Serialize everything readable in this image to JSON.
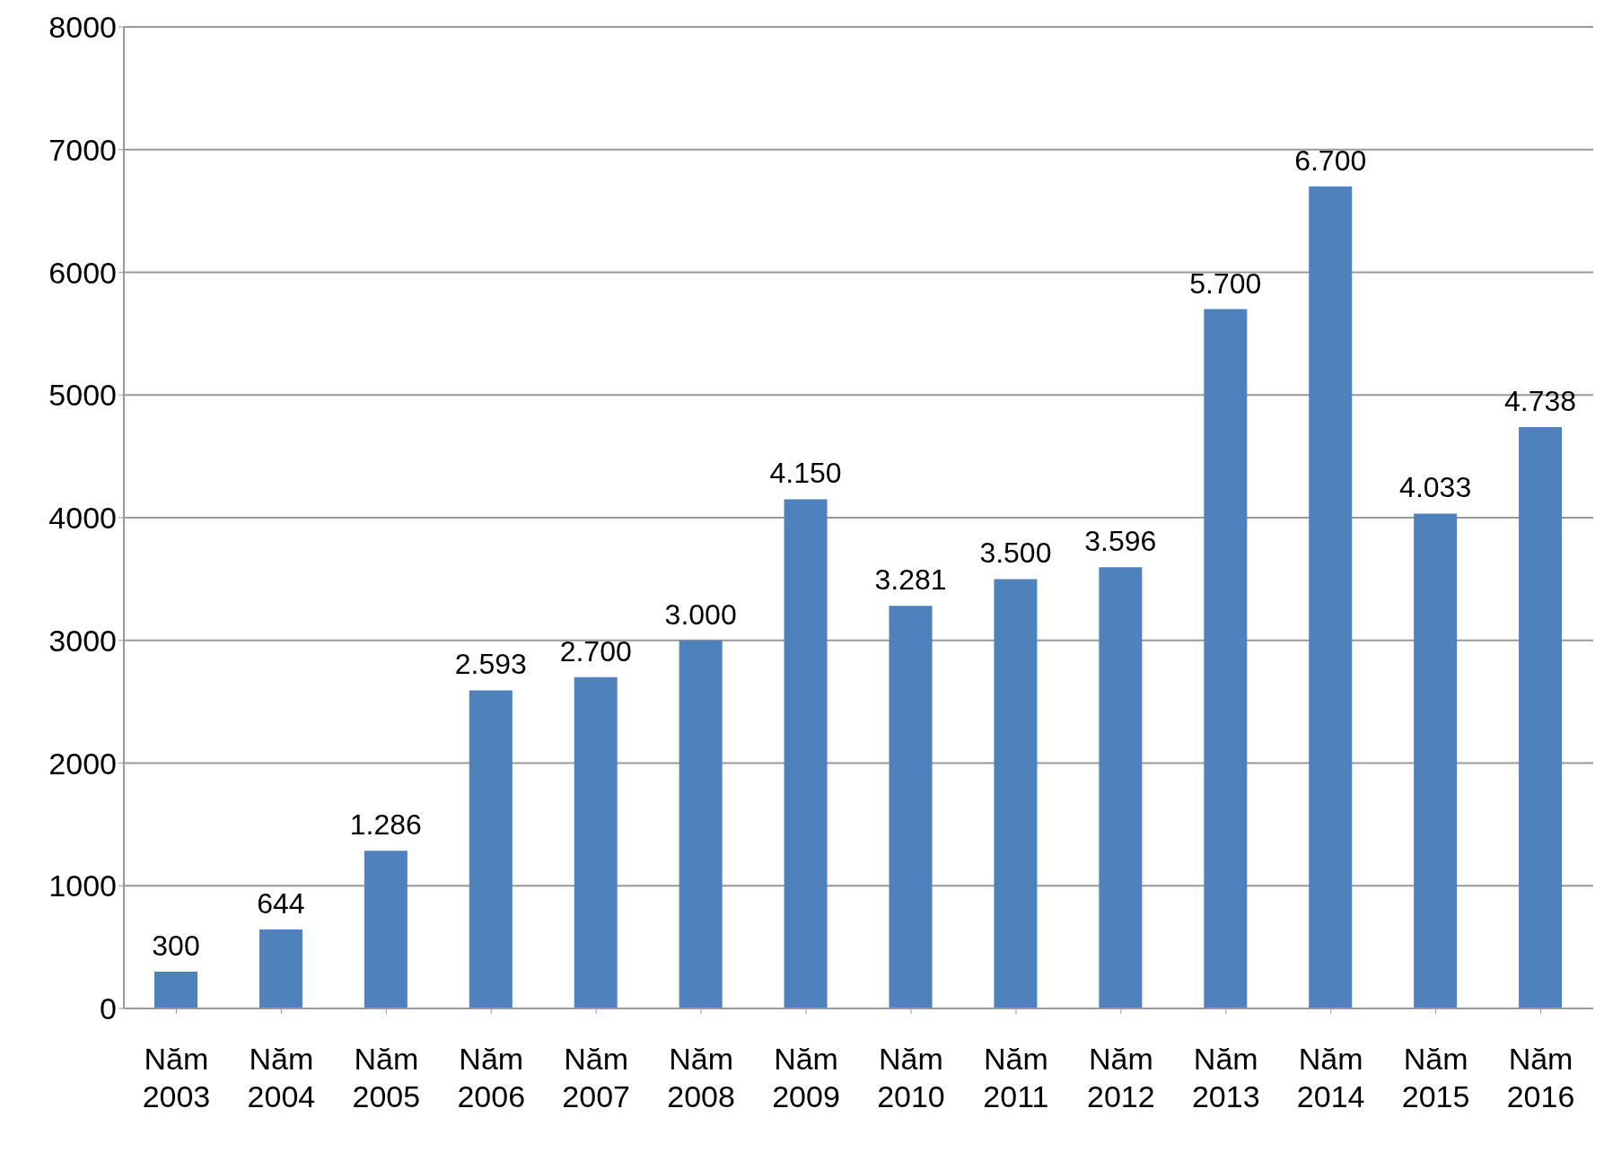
{
  "chart_data": {
    "type": "bar",
    "categories": [
      "Năm 2003",
      "Năm 2004",
      "Năm 2005",
      "Năm 2006",
      "Năm 2007",
      "Năm 2008",
      "Năm 2009",
      "Năm 2010",
      "Năm 2011",
      "Năm 2012",
      "Năm 2013",
      "Năm 2014",
      "Năm 2015",
      "Năm 2016"
    ],
    "values": [
      300,
      644,
      1286,
      2593,
      2700,
      3000,
      4150,
      3281,
      3500,
      3596,
      5700,
      6700,
      4033,
      4738
    ],
    "value_labels": [
      "300",
      "644",
      "1.286",
      "2.593",
      "2.700",
      "3.000",
      "4.150",
      "3.281",
      "3.500",
      "3.596",
      "5.700",
      "6.700",
      "4.033",
      "4.738"
    ],
    "color": "#4f81bd",
    "ylim": [
      0,
      8000
    ],
    "yticks": [
      0,
      1000,
      2000,
      3000,
      4000,
      5000,
      6000,
      7000,
      8000
    ],
    "grid": "y"
  }
}
